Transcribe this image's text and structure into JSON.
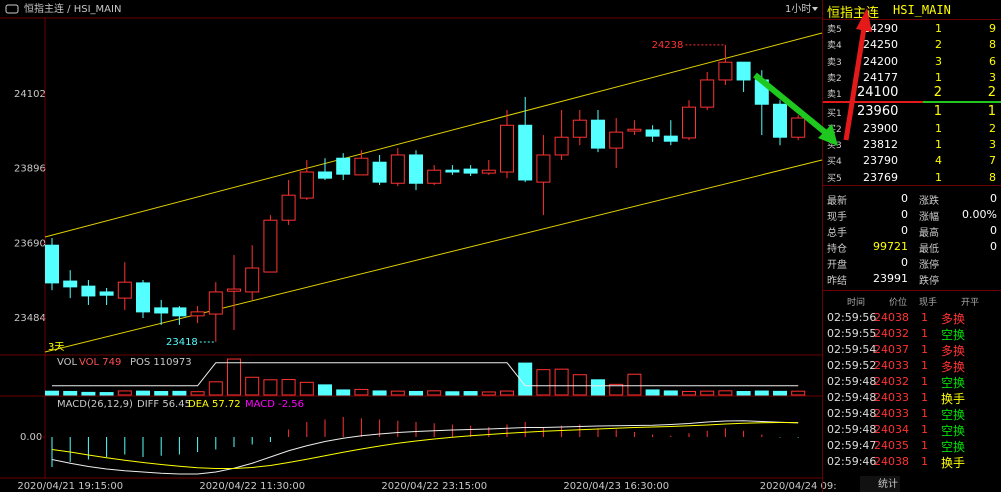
{
  "header": {
    "title": "恒指主连 / HSI_MAIN",
    "period": "1小时"
  },
  "chart": {
    "type": "candlestick",
    "range_label": "3天",
    "categories": [
      null,
      "2020/04/21 19:15:00",
      null,
      null,
      null,
      null,
      null,
      null,
      null,
      null,
      null,
      "2020/04/22 11:30:00",
      null,
      null,
      null,
      null,
      null,
      null,
      null,
      null,
      null,
      "2020/04/22 23:15:00",
      null,
      null,
      null,
      null,
      null,
      null,
      null,
      null,
      null,
      "2020/04/23 16:30:00",
      null,
      null,
      null,
      null,
      null,
      null,
      null,
      null,
      null,
      "2020/04/24 09:"
    ],
    "open": [
      23685,
      23586,
      23572,
      23556,
      23539,
      23581,
      23512,
      23512,
      23490,
      23495,
      23558,
      23556,
      23611,
      23754,
      23815,
      23887,
      23925,
      23879,
      23914,
      23856,
      23934,
      23856,
      23892,
      23895,
      23884,
      23887,
      24016,
      23859,
      23934,
      23983,
      24030,
      23953,
      24000,
      24003,
      23986,
      23981,
      24066,
      24141,
      24190,
      24141,
      24074,
      23983
    ],
    "high": [
      23705,
      23616,
      23589,
      23567,
      23638,
      23589,
      23534,
      23517,
      23517,
      23583,
      23658,
      23685,
      23768,
      23865,
      23920,
      23925,
      23939,
      23947,
      23934,
      23953,
      23947,
      23906,
      23906,
      23906,
      23920,
      24058,
      24094,
      23989,
      24058,
      24058,
      24058,
      24036,
      24030,
      24016,
      24030,
      24085,
      24163,
      24238,
      24190,
      24168,
      24085,
      24044
    ],
    "low": [
      23561,
      23539,
      23520,
      23520,
      23506,
      23484,
      23465,
      23465,
      23470,
      23418,
      23451,
      23534,
      23611,
      23741,
      23810,
      23865,
      23865,
      23879,
      23851,
      23848,
      23837,
      23851,
      23879,
      23876,
      23879,
      23870,
      23859,
      23768,
      23920,
      23961,
      23942,
      23898,
      23989,
      23970,
      23961,
      23975,
      24058,
      24127,
      24108,
      23989,
      23961,
      23975
    ],
    "close": [
      23581,
      23570,
      23545,
      23547,
      23583,
      23501,
      23498,
      23490,
      23501,
      23556,
      23564,
      23622,
      23754,
      23823,
      23887,
      23870,
      23881,
      23925,
      23859,
      23934,
      23856,
      23892,
      23887,
      23884,
      23892,
      24016,
      23865,
      23934,
      23983,
      24030,
      23953,
      23997,
      24005,
      23986,
      23972,
      24066,
      24141,
      24190,
      24141,
      24074,
      23983,
      24036
    ],
    "up_color": "#ff3232",
    "down_color": "#54ffff",
    "high_label": 24238,
    "low_label": 23418,
    "ylim": [
      23382,
      24312
    ],
    "yticks": [
      24102,
      23896,
      23690,
      23484
    ]
  },
  "volume": {
    "title": "VOL",
    "vol_label": "VOL 749",
    "pos_label": "POS 110973",
    "values": [
      750,
      700,
      520,
      480,
      800,
      760,
      690,
      720,
      650,
      2600,
      7100,
      3500,
      3000,
      3050,
      2500,
      2000,
      1000,
      1100,
      800,
      760,
      700,
      820,
      640,
      680,
      600,
      780,
      6300,
      5000,
      5100,
      4000,
      3000,
      2100,
      4100,
      1000,
      800,
      700,
      760,
      820,
      690,
      780,
      720,
      749
    ],
    "pos": [
      110973,
      110973,
      110973,
      110973,
      110973,
      110973,
      110973,
      110973,
      110973,
      113400,
      113400,
      113400,
      113400,
      113400,
      113400,
      113400,
      113400,
      113400,
      113400,
      113400,
      113400,
      113400,
      113400,
      113400,
      113400,
      113400,
      110973,
      110973,
      110973,
      110973,
      110973,
      110973,
      110973,
      110973,
      110973,
      110973,
      110973,
      110973,
      110973,
      110973,
      110973,
      110973
    ],
    "ylim": [
      0,
      7500
    ],
    "pos_lim": [
      110000,
      114000
    ]
  },
  "macd": {
    "title": "MACD(26,12,9)",
    "diff_label": "DIFF 56.45",
    "dea_label": "DEA 57.72",
    "macd_label": "MACD -2.56",
    "hist": [
      -120,
      -100,
      -90,
      -80,
      -70,
      -80,
      -75,
      -70,
      -60,
      -50,
      -40,
      -30,
      -20,
      30,
      60,
      70,
      80,
      75,
      70,
      65,
      60,
      55,
      50,
      45,
      40,
      50,
      60,
      40,
      45,
      50,
      35,
      30,
      20,
      10,
      5,
      15,
      25,
      35,
      25,
      10,
      -2,
      -2.56
    ],
    "diff": [
      -90,
      -105,
      -118,
      -128,
      -135,
      -140,
      -145,
      -148,
      -148,
      -140,
      -125,
      -105,
      -80,
      -55,
      -35,
      -18,
      -5,
      5,
      12,
      18,
      22,
      25,
      28,
      30,
      32,
      35,
      38,
      38,
      40,
      42,
      44,
      45,
      46,
      47,
      50,
      54,
      60,
      64,
      65,
      62,
      59,
      56.45
    ],
    "dea": [
      -50,
      -60,
      -72,
      -83,
      -93,
      -102,
      -110,
      -117,
      -123,
      -126,
      -126,
      -122,
      -114,
      -102,
      -89,
      -75,
      -61,
      -48,
      -36,
      -25,
      -16,
      -8,
      -1,
      5,
      10,
      15,
      19,
      23,
      26,
      29,
      32,
      35,
      38,
      40,
      42,
      45,
      48,
      52,
      55,
      57,
      58,
      57.72
    ],
    "ylim": [
      -164,
      160
    ],
    "yticks": [
      {
        "value": 0,
        "label": "0.00"
      }
    ]
  },
  "footer": {
    "tab": "统计"
  },
  "quote": {
    "name": "恒指主连",
    "code": "HSI_MAIN",
    "book": [
      {
        "label": "卖5",
        "price": 24290,
        "vol": 1,
        "count": 9
      },
      {
        "label": "卖4",
        "price": 24250,
        "vol": 2,
        "count": 8
      },
      {
        "label": "卖3",
        "price": 24200,
        "vol": 3,
        "count": 6
      },
      {
        "label": "卖2",
        "price": 24177,
        "vol": 1,
        "count": 3
      },
      {
        "label": "卖1",
        "price": 24100,
        "vol": 2,
        "count": 2
      },
      {
        "label": "买1",
        "price": 23960,
        "vol": 1,
        "count": 1
      },
      {
        "label": "买2",
        "price": 23900,
        "vol": 1,
        "count": 2
      },
      {
        "label": "买3",
        "price": 23812,
        "vol": 1,
        "count": 3
      },
      {
        "label": "买4",
        "price": 23790,
        "vol": 4,
        "count": 7
      },
      {
        "label": "买5",
        "price": 23769,
        "vol": 1,
        "count": 8
      }
    ],
    "stats": [
      [
        {
          "label": "最新",
          "value": 0
        },
        {
          "label": "涨跌",
          "value": 0
        }
      ],
      [
        {
          "label": "现手",
          "value": 0
        },
        {
          "label": "涨幅",
          "value": "0.00%"
        }
      ],
      [
        {
          "label": "总手",
          "value": 0
        },
        {
          "label": "最高",
          "value": 0
        }
      ],
      [
        {
          "label": "持仓",
          "value": 99721
        },
        {
          "label": "最低",
          "value": 0
        }
      ],
      [
        {
          "label": "开盘",
          "value": 0
        },
        {
          "label": "涨停"
        }
      ],
      [
        {
          "label": "昨结",
          "value": 23991
        },
        {
          "label": "跌停"
        }
      ]
    ],
    "trade_headers": [
      "时间",
      "价位",
      "现手",
      "开平"
    ],
    "type_colors": {
      "多换": "#ff3232",
      "空换": "#00e000",
      "换手": "#ffff00"
    },
    "trades": [
      {
        "time": "02:59:56",
        "price": 24038,
        "vol": 1,
        "type": "多换"
      },
      {
        "time": "02:59:55",
        "price": 24032,
        "vol": 1,
        "type": "空换"
      },
      {
        "time": "02:59:54",
        "price": 24037,
        "vol": 1,
        "type": "多换"
      },
      {
        "time": "02:59:52",
        "price": 24033,
        "vol": 1,
        "type": "多换"
      },
      {
        "time": "02:59:48",
        "price": 24032,
        "vol": 1,
        "type": "空换"
      },
      {
        "time": "02:59:48",
        "price": 24033,
        "vol": 1,
        "type": "换手"
      },
      {
        "time": "02:59:48",
        "price": 24033,
        "vol": 1,
        "type": "空换"
      },
      {
        "time": "02:59:48",
        "price": 24034,
        "vol": 1,
        "type": "空换"
      },
      {
        "time": "02:59:47",
        "price": 24035,
        "vol": 1,
        "type": "空换"
      },
      {
        "time": "02:59:46",
        "price": 24038,
        "vol": 1,
        "type": "换手"
      }
    ]
  }
}
